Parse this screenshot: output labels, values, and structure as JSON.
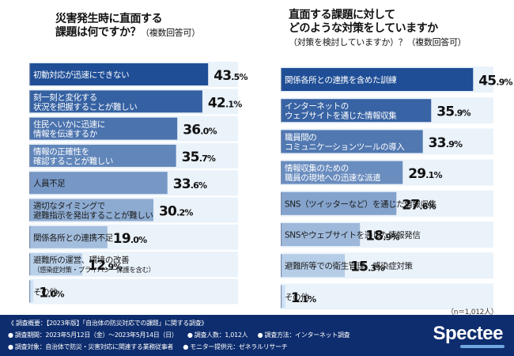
{
  "left": {
    "title_lines": [
      "災害発生時に直面する",
      "課題は何ですか？"
    ],
    "title_note": "（複数回答可）"
  },
  "right": {
    "title_lines": [
      "直面する課題に対して",
      "どのような対策をしていますか"
    ],
    "title_note": "（対策を検討していますか）？（複数回答可）"
  },
  "sample_size": "（n＝1,012人）",
  "chart_data": [
    {
      "type": "bar",
      "orientation": "horizontal",
      "xlim": [
        0,
        50
      ],
      "categories": [
        "初動対応が迅速にできない",
        "刻一刻と変化する\n状況を把握することが難しい",
        "住民へいかに迅速に\n情報を伝達するか",
        "情報の正確性を\n確認することが難しい",
        "人員不足",
        "適切なタイミングで\n避難指示を発出することが難しい",
        "関係各所との連携不足",
        "避難所の運営、環境の改善\n（感染症対策・プライバシー保護を含む）",
        "その他"
      ],
      "values": [
        43.5,
        42.1,
        36.0,
        35.7,
        33.6,
        30.2,
        19.0,
        12.9,
        1.0
      ],
      "value_labels": [
        "43.5",
        "42.1",
        "36.0",
        "35.7",
        "33.6",
        "30.2",
        "19.0",
        "12.9",
        "1.0"
      ],
      "unit": "%"
    },
    {
      "type": "bar",
      "orientation": "horizontal",
      "xlim": [
        0,
        50
      ],
      "categories": [
        "関係各所との連携を含めた訓練",
        "インターネットの\nウェブサイトを通じた情報収集",
        "職員間の\nコミュニケーションツールの導入",
        "情報収集のための\n職員の現地への迅速な派遣",
        "SNS（ツイッターなど）を通じた情報収集",
        "SNSやウェブサイトを通じた情報発信",
        "避難所等での衛生管理、感染症対策",
        "その他"
      ],
      "values": [
        45.9,
        35.9,
        33.9,
        29.1,
        27.6,
        18.9,
        15.3,
        1.1
      ],
      "value_labels": [
        "45.9",
        "35.9",
        "33.9",
        "29.1",
        "27.6",
        "18.9",
        "15.3",
        "1.1"
      ],
      "unit": "%"
    }
  ],
  "colors": {
    "bar_dark": "#1f4e96",
    "bar_light": "#cfe2f5",
    "band": "#eaf2fa",
    "label_dark": "#ffffff",
    "label_light": "#1a1a1a",
    "footer_bg": "#0e2d6e"
  },
  "footer": {
    "line1": [
      "《 調査概要：【2023年版】「自治体の防災対応での課題」に関する調査》"
    ],
    "line2": [
      "● 調査期間：2023年5月12日（金）〜2023年5月14日（日）",
      "● 調査人数：1,012人",
      "● 調査方法：インターネット調査"
    ],
    "line3": [
      "● 調査対象：自治体で防災・災害対応に関連する業務従事者",
      "● モニター提供元：ゼネラルリサーチ"
    ],
    "logo": "Spectee"
  }
}
